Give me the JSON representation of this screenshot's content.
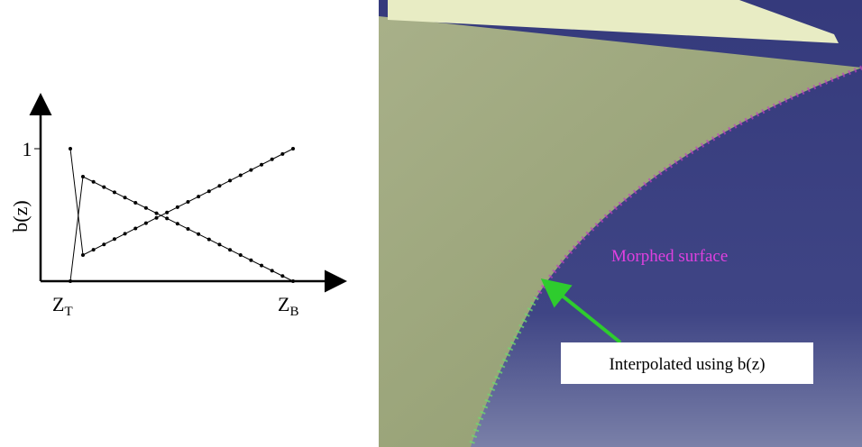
{
  "plot": {
    "y_label": "b(z)",
    "y_tick": "1",
    "x_start": {
      "main": "Z",
      "sub": "T"
    },
    "x_end": {
      "main": "Z",
      "sub": "B"
    }
  },
  "render": {
    "surface_label": "Morphed surface",
    "callout": "Interpolated using b(z)"
  }
}
